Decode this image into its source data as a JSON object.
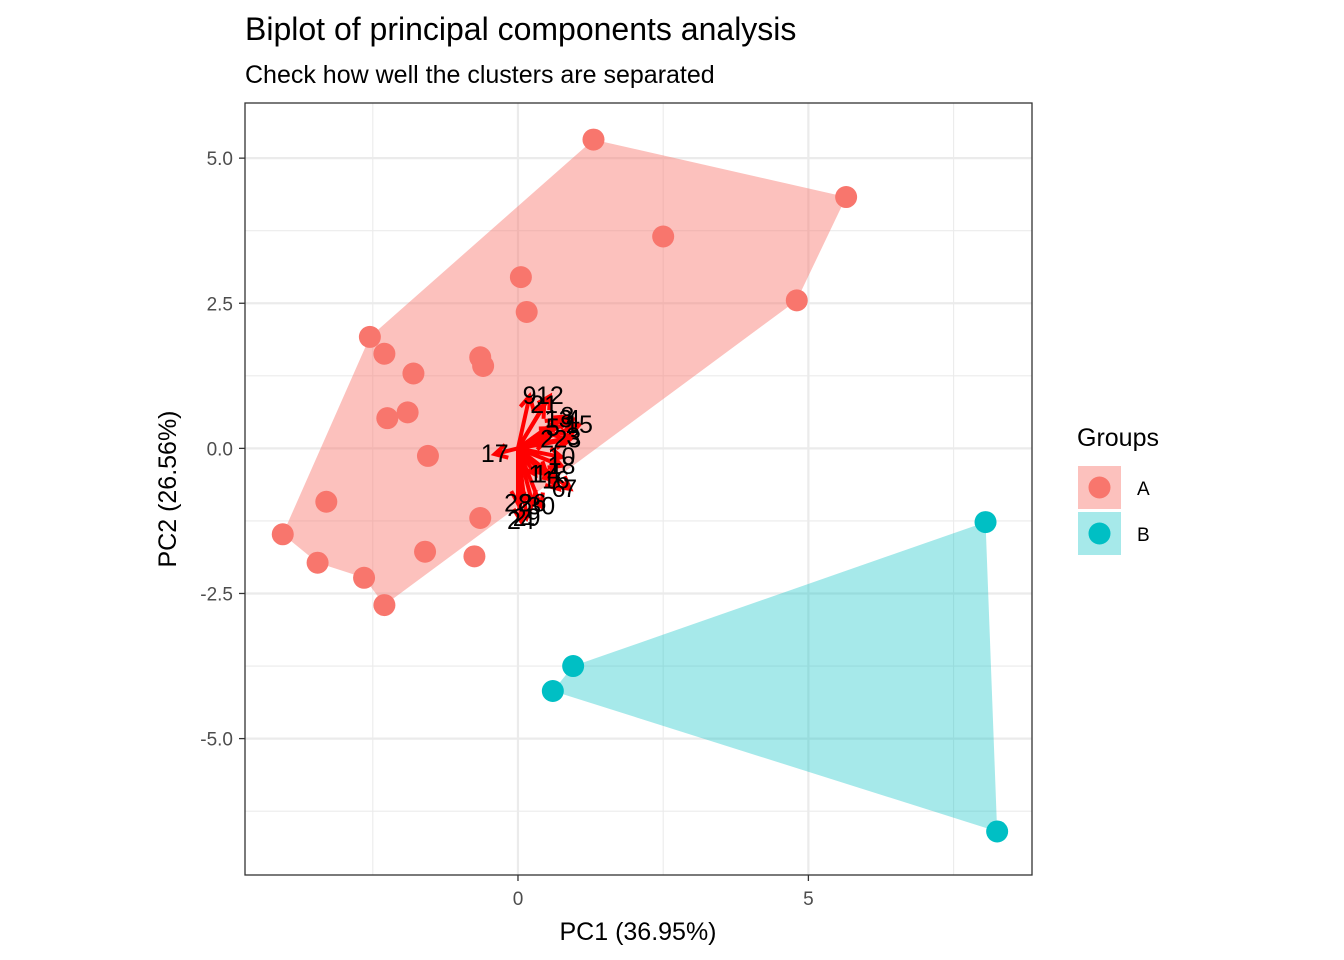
{
  "chart_data": {
    "type": "scatter",
    "title": "Biplot of principal components analysis",
    "subtitle": "Check how well the clusters are separated",
    "xlabel": "PC1 (36.95%)",
    "ylabel": "PC2 (26.56%)",
    "xlim": [
      -4.7,
      8.85
    ],
    "ylim": [
      -7.35,
      5.95
    ],
    "x_ticks": [
      0,
      5
    ],
    "x_tick_labels": [
      "0",
      "5"
    ],
    "y_ticks": [
      5.0,
      2.5,
      0.0,
      -2.5,
      -5.0
    ],
    "y_tick_labels": [
      "5.0",
      "2.5",
      "0.0",
      "-2.5",
      "-5.0"
    ],
    "grid": true,
    "legend": {
      "title": "Groups",
      "position": "right",
      "entries": [
        "A",
        "B"
      ]
    },
    "colors": {
      "A": "#F8766D",
      "B": "#00BFC4",
      "arrows": "#FF0000"
    },
    "series": [
      {
        "name": "A",
        "points": [
          [
            1.3,
            5.32
          ],
          [
            5.65,
            4.33
          ],
          [
            2.5,
            3.65
          ],
          [
            0.05,
            2.95
          ],
          [
            0.15,
            2.35
          ],
          [
            4.8,
            2.55
          ],
          [
            -2.55,
            1.92
          ],
          [
            -2.3,
            1.63
          ],
          [
            -0.65,
            1.57
          ],
          [
            -0.6,
            1.42
          ],
          [
            -1.8,
            1.29
          ],
          [
            -1.9,
            0.62
          ],
          [
            -2.25,
            0.52
          ],
          [
            -1.55,
            -0.13
          ],
          [
            -3.3,
            -0.92
          ],
          [
            -0.65,
            -1.2
          ],
          [
            -4.05,
            -1.48
          ],
          [
            -3.45,
            -1.97
          ],
          [
            -1.6,
            -1.78
          ],
          [
            -0.75,
            -1.86
          ],
          [
            -2.65,
            -2.23
          ],
          [
            -2.3,
            -2.7
          ]
        ],
        "hull": [
          [
            1.3,
            5.32
          ],
          [
            5.65,
            4.33
          ],
          [
            4.8,
            2.55
          ],
          [
            -2.3,
            -2.7
          ],
          [
            -2.65,
            -2.23
          ],
          [
            -3.45,
            -1.97
          ],
          [
            -4.05,
            -1.48
          ],
          [
            -2.55,
            1.92
          ]
        ]
      },
      {
        "name": "B",
        "points": [
          [
            8.05,
            -1.27
          ],
          [
            0.95,
            -3.75
          ],
          [
            0.6,
            -4.18
          ],
          [
            8.25,
            -6.6
          ]
        ],
        "hull": [
          [
            8.05,
            -1.27
          ],
          [
            8.25,
            -6.6
          ],
          [
            0.6,
            -4.18
          ],
          [
            0.95,
            -3.75
          ]
        ]
      }
    ],
    "loadings": [
      {
        "label": "9",
        "x": 0.2,
        "y": 0.9
      },
      {
        "label": "12",
        "x": 0.55,
        "y": 0.9
      },
      {
        "label": "21",
        "x": 0.45,
        "y": 0.75
      },
      {
        "label": "8",
        "x": 0.85,
        "y": 0.55
      },
      {
        "label": "13",
        "x": 0.7,
        "y": 0.5
      },
      {
        "label": "4",
        "x": 0.95,
        "y": 0.5
      },
      {
        "label": "15",
        "x": 1.05,
        "y": 0.4
      },
      {
        "label": "5",
        "x": 0.6,
        "y": 0.35
      },
      {
        "label": "3",
        "x": 0.95,
        "y": 0.2
      },
      {
        "label": "2",
        "x": 0.5,
        "y": 0.15
      },
      {
        "label": "23",
        "x": 0.85,
        "y": 0.15
      },
      {
        "label": "17",
        "x": -0.4,
        "y": -0.1
      },
      {
        "label": "10",
        "x": 0.75,
        "y": -0.15
      },
      {
        "label": "18",
        "x": 0.75,
        "y": -0.3
      },
      {
        "label": "1",
        "x": 0.3,
        "y": -0.45
      },
      {
        "label": "14",
        "x": 0.5,
        "y": -0.45
      },
      {
        "label": "16",
        "x": 0.65,
        "y": -0.55
      },
      {
        "label": "6",
        "x": 0.7,
        "y": -0.7
      },
      {
        "label": "7",
        "x": 0.9,
        "y": -0.7
      },
      {
        "label": "28",
        "x": 0.0,
        "y": -0.95
      },
      {
        "label": "26",
        "x": 0.25,
        "y": -0.95
      },
      {
        "label": "30",
        "x": 0.4,
        "y": -1.0
      },
      {
        "label": "29",
        "x": 0.15,
        "y": -1.2
      },
      {
        "label": "24",
        "x": 0.05,
        "y": -1.25
      }
    ]
  }
}
